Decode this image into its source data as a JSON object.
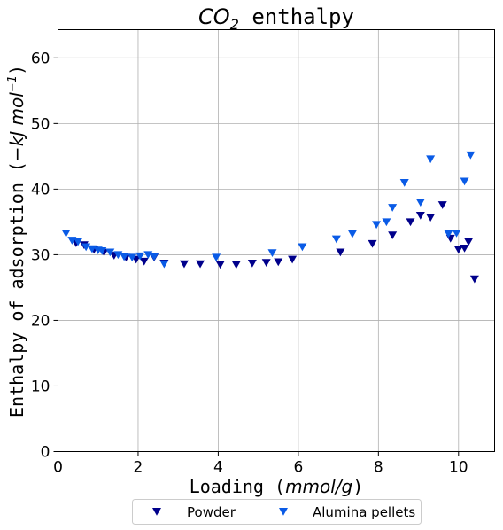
{
  "chart_data": {
    "type": "scatter",
    "title": {
      "prefix": "CO",
      "subscript": "2",
      "suffix": " enthalpy"
    },
    "xlabel": {
      "text": "Loading (",
      "italic": "mmol/g",
      "close": ")"
    },
    "ylabel": {
      "text": "Enthalpy of adsorption (",
      "italic": "−kJ mol",
      "sup": "−1",
      "close": ")"
    },
    "xlim": [
      0,
      10.9
    ],
    "ylim": [
      0,
      64.3
    ],
    "xticks": [
      0,
      2,
      4,
      6,
      8,
      10
    ],
    "yticks": [
      0,
      10,
      20,
      30,
      40,
      50,
      60
    ],
    "grid": true,
    "legend_position": "bottom-center",
    "series": [
      {
        "name": "Powder",
        "color": "#00008b",
        "marker": "triangle-down",
        "x": [
          0.45,
          0.65,
          0.9,
          1.15,
          1.4,
          1.7,
          1.95,
          2.15,
          2.4,
          2.65,
          3.15,
          3.55,
          4.05,
          4.45,
          4.85,
          5.2,
          5.5,
          5.85,
          7.05,
          7.85,
          8.35,
          8.8,
          9.05,
          9.3,
          9.6,
          9.8,
          10.0,
          10.15,
          10.25,
          10.4
        ],
        "y": [
          31.8,
          31.5,
          30.8,
          30.4,
          29.9,
          29.6,
          29.3,
          29.0,
          29.6,
          28.7,
          28.6,
          28.6,
          28.5,
          28.5,
          28.7,
          28.8,
          28.9,
          29.3,
          30.4,
          31.7,
          33.0,
          35.0,
          36.0,
          35.7,
          37.6,
          32.5,
          30.8,
          31.0,
          32.0,
          26.3
        ]
      },
      {
        "name": "Alumina pellets",
        "color": "#0a5be6",
        "marker": "triangle-down",
        "x": [
          0.2,
          0.35,
          0.5,
          0.7,
          0.85,
          1.0,
          1.1,
          1.3,
          1.5,
          1.65,
          1.85,
          2.05,
          2.25,
          2.4,
          2.65,
          3.95,
          5.35,
          6.1,
          6.95,
          7.35,
          7.95,
          8.2,
          8.35,
          8.65,
          9.05,
          9.3,
          9.75,
          9.95,
          10.15,
          10.3
        ],
        "y": [
          33.3,
          32.2,
          32.0,
          31.2,
          30.9,
          30.7,
          30.6,
          30.4,
          30.0,
          29.7,
          29.6,
          29.8,
          30.0,
          29.7,
          28.6,
          29.6,
          30.3,
          31.2,
          32.4,
          33.2,
          34.6,
          35.0,
          37.2,
          41.0,
          38.0,
          44.6,
          33.2,
          33.3,
          41.2,
          45.2
        ]
      }
    ]
  }
}
